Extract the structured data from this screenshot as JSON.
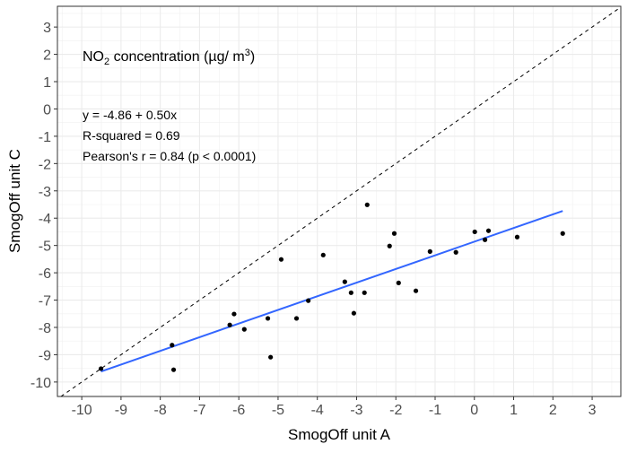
{
  "chart_data": {
    "type": "scatter",
    "title": "",
    "xlabel": "SmogOff unit A",
    "ylabel": "SmogOff unit C",
    "xlim": [
      -10.62,
      3.73
    ],
    "ylim": [
      -10.53,
      3.76
    ],
    "xticks": [
      -10,
      -9,
      -8,
      -7,
      -6,
      -5,
      -4,
      -3,
      -2,
      -1,
      0,
      1,
      2,
      3
    ],
    "yticks": [
      -10,
      -9,
      -8,
      -7,
      -6,
      -5,
      -4,
      -3,
      -2,
      -1,
      0,
      1,
      2,
      3
    ],
    "grid": true,
    "annotation_title": {
      "main": "NO",
      "sub": "2",
      "rest": " concentration (µg/ m",
      "sup": "3",
      "end": ")"
    },
    "annotations": [
      "y = -4.86 + 0.50x",
      "R-squared = 0.69",
      "Pearson's r = 0.84 (p < 0.0001)"
    ],
    "reference_line": {
      "type": "identity",
      "style": "dashed",
      "color": "#000000"
    },
    "fit_line": {
      "intercept": -4.86,
      "slope": 0.5,
      "x_range": [
        -9.51,
        2.25
      ],
      "color": "#3366FF"
    },
    "points": [
      {
        "x": -9.51,
        "y": -9.51
      },
      {
        "x": -7.7,
        "y": -8.65
      },
      {
        "x": -7.66,
        "y": -9.55
      },
      {
        "x": -6.23,
        "y": -7.91
      },
      {
        "x": -6.12,
        "y": -7.51
      },
      {
        "x": -5.86,
        "y": -8.07
      },
      {
        "x": -5.26,
        "y": -7.67
      },
      {
        "x": -5.19,
        "y": -9.09
      },
      {
        "x": -4.92,
        "y": -5.51
      },
      {
        "x": -4.53,
        "y": -7.67
      },
      {
        "x": -4.23,
        "y": -7.02
      },
      {
        "x": -3.85,
        "y": -5.35
      },
      {
        "x": -3.3,
        "y": -6.33
      },
      {
        "x": -3.14,
        "y": -6.73
      },
      {
        "x": -3.07,
        "y": -7.48
      },
      {
        "x": -2.8,
        "y": -6.73
      },
      {
        "x": -2.73,
        "y": -3.51
      },
      {
        "x": -2.16,
        "y": -5.02
      },
      {
        "x": -2.04,
        "y": -4.56
      },
      {
        "x": -1.93,
        "y": -6.37
      },
      {
        "x": -1.49,
        "y": -6.66
      },
      {
        "x": -1.13,
        "y": -5.22
      },
      {
        "x": -0.47,
        "y": -5.25
      },
      {
        "x": 0.01,
        "y": -4.5
      },
      {
        "x": 0.27,
        "y": -4.79
      },
      {
        "x": 0.36,
        "y": -4.46
      },
      {
        "x": 1.09,
        "y": -4.69
      },
      {
        "x": 2.25,
        "y": -4.56
      }
    ],
    "point_color": "#000000"
  }
}
